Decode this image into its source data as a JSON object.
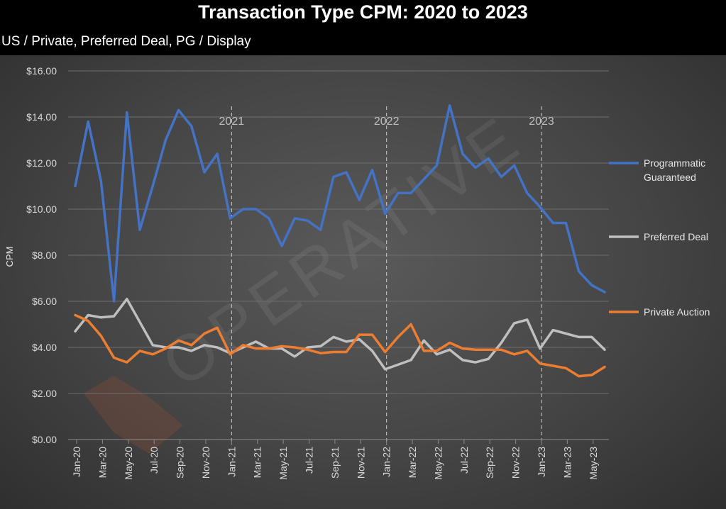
{
  "chart_data": {
    "type": "line",
    "title": "Transaction Type CPM: 2020 to 2023",
    "subtitle": "US / Private, Preferred Deal, PG / Display",
    "xlabel": "",
    "ylabel": "CPM",
    "ylim": [
      0,
      16
    ],
    "y_ticks": [
      "$0.00",
      "$2.00",
      "$4.00",
      "$6.00",
      "$8.00",
      "$10.00",
      "$12.00",
      "$14.00",
      "$16.00"
    ],
    "grid": true,
    "legend_position": "right",
    "categories": [
      "Jan-20",
      "Feb-20",
      "Mar-20",
      "Apr-20",
      "May-20",
      "Jun-20",
      "Jul-20",
      "Aug-20",
      "Sep-20",
      "Oct-20",
      "Nov-20",
      "Dec-20",
      "Jan-21",
      "Feb-21",
      "Mar-21",
      "Apr-21",
      "May-21",
      "Jun-21",
      "Jul-21",
      "Aug-21",
      "Sep-21",
      "Oct-21",
      "Nov-21",
      "Dec-21",
      "Jan-22",
      "Feb-22",
      "Mar-22",
      "Apr-22",
      "May-22",
      "Jun-22",
      "Jul-22",
      "Aug-22",
      "Sep-22",
      "Oct-22",
      "Nov-22",
      "Dec-22",
      "Jan-23",
      "Feb-23",
      "Mar-23",
      "Apr-23",
      "May-23",
      "Jun-23"
    ],
    "x_tick_labels": [
      "Jan-20",
      "Mar-20",
      "May-20",
      "Jul-20",
      "Sep-20",
      "Nov-20",
      "Jan-21",
      "Mar-21",
      "May-21",
      "Jul-21",
      "Sep-21",
      "Nov-21",
      "Jan-22",
      "Mar-22",
      "May-22",
      "Jul-22",
      "Sep-22",
      "Nov-22",
      "Jan-23",
      "Mar-23",
      "May-23"
    ],
    "year_markers": [
      {
        "label": "2021",
        "category": "Jan-21"
      },
      {
        "label": "2022",
        "category": "Jan-22"
      },
      {
        "label": "2023",
        "category": "Jan-23"
      }
    ],
    "series": [
      {
        "name": "Programmatic Guaranteed",
        "legend_lines": [
          "Programmatic",
          "Guaranteed"
        ],
        "color": "#4472c4",
        "values": [
          11.0,
          13.8,
          11.2,
          6.0,
          14.2,
          9.1,
          11.0,
          13.0,
          14.3,
          13.6,
          11.6,
          12.4,
          9.6,
          10.0,
          10.0,
          9.6,
          8.4,
          9.6,
          9.5,
          9.1,
          11.4,
          11.6,
          10.4,
          11.7,
          9.8,
          10.7,
          10.7,
          11.3,
          11.9,
          14.5,
          12.4,
          11.8,
          12.2,
          11.4,
          11.9,
          10.7,
          10.1,
          9.4,
          9.4,
          7.3,
          6.7,
          6.4
        ]
      },
      {
        "name": "Preferred Deal",
        "legend_lines": [
          "Preferred Deal"
        ],
        "color": "#bfbfbf",
        "values": [
          4.7,
          5.4,
          5.3,
          5.35,
          6.1,
          5.1,
          4.1,
          4.0,
          4.0,
          3.85,
          4.1,
          4.0,
          3.75,
          4.0,
          4.25,
          3.95,
          3.95,
          3.6,
          4.0,
          4.05,
          4.45,
          4.25,
          4.35,
          3.85,
          3.05,
          3.25,
          3.45,
          4.3,
          3.7,
          3.9,
          3.45,
          3.35,
          3.5,
          4.2,
          5.05,
          5.2,
          3.95,
          4.75,
          4.6,
          4.45,
          4.45,
          3.9
        ]
      },
      {
        "name": "Private Auction",
        "legend_lines": [
          "Private Auction"
        ],
        "color": "#ed7d31",
        "values": [
          5.4,
          5.15,
          4.5,
          3.55,
          3.35,
          3.85,
          3.7,
          3.95,
          4.3,
          4.1,
          4.6,
          4.85,
          3.7,
          4.1,
          3.95,
          3.95,
          4.05,
          4.0,
          3.9,
          3.75,
          3.8,
          3.8,
          4.55,
          4.55,
          3.8,
          4.45,
          5.0,
          3.85,
          3.85,
          4.2,
          3.95,
          3.9,
          3.9,
          3.9,
          3.7,
          3.85,
          3.3,
          3.2,
          3.1,
          2.75,
          2.8,
          3.15
        ]
      }
    ]
  },
  "watermark": "OPERATIVE"
}
